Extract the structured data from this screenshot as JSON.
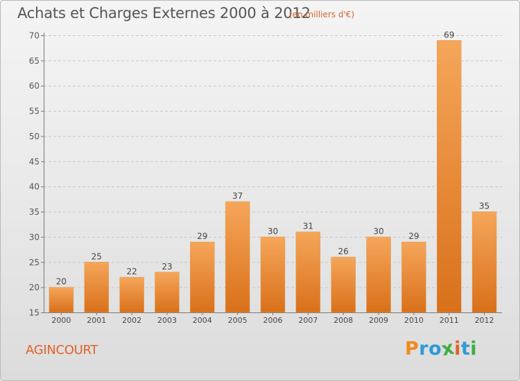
{
  "header": {
    "title": "Achats et Charges Externes 2000 à 2012",
    "subtitle": "(en milliers d'€)"
  },
  "footer": {
    "commune": "AGINCOURT",
    "brand_letters": [
      "P",
      "r",
      "o",
      "x",
      "i",
      "t",
      "i"
    ]
  },
  "colors": {
    "bar_top": "#f5a65a",
    "bar_bottom": "#d9701a",
    "commune_text": "#e0622a",
    "brand_letters": [
      "#f08a1c",
      "#2e9ad6",
      "#2e9ad6",
      "#3fae3f",
      "#e0622a",
      "#2e9ad6",
      "#3fae3f"
    ]
  },
  "chart_data": {
    "type": "bar",
    "title": "Achats et Charges Externes 2000 à 2012",
    "subtitle": "(en milliers d'€)",
    "categories": [
      "2000",
      "2001",
      "2002",
      "2003",
      "2004",
      "2005",
      "2006",
      "2007",
      "2008",
      "2009",
      "2010",
      "2011",
      "2012"
    ],
    "values": [
      20,
      25,
      22,
      23,
      29,
      37,
      30,
      31,
      26,
      30,
      29,
      69,
      35
    ],
    "ylim": [
      15,
      70
    ],
    "yticks": [
      15,
      20,
      25,
      30,
      35,
      40,
      45,
      50,
      55,
      60,
      65,
      70
    ],
    "grid": true,
    "legend": "none"
  }
}
